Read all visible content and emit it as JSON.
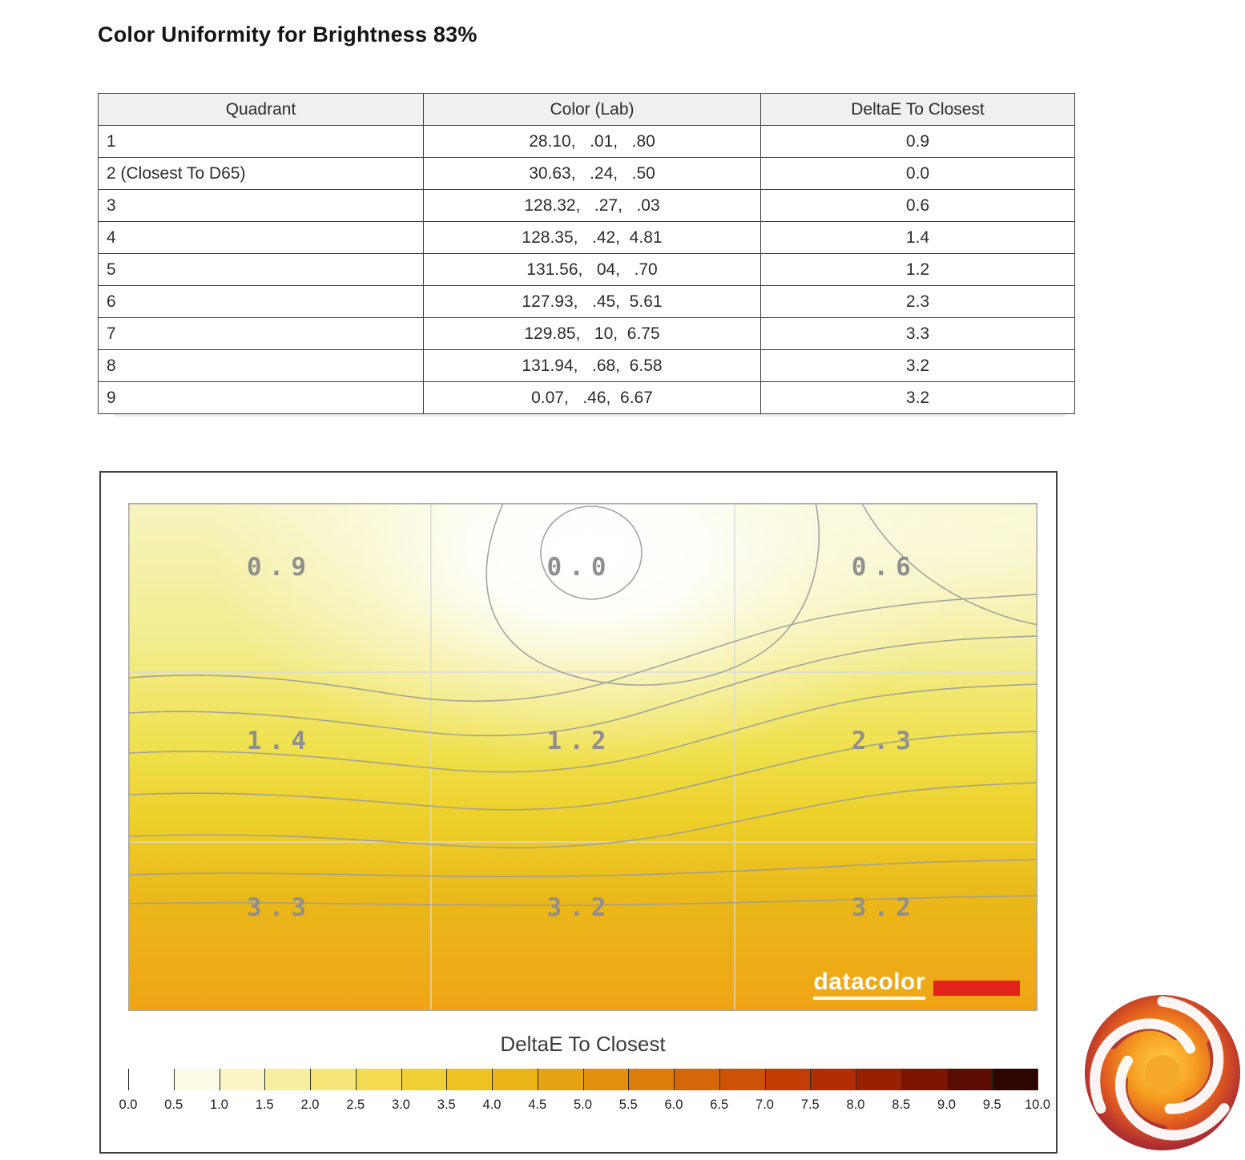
{
  "page": {
    "title": "Color Uniformity for Brightness 83%"
  },
  "table": {
    "headers": [
      "Quadrant",
      "Color (Lab)",
      "DeltaE To Closest"
    ],
    "rows": [
      [
        "1",
        "28.10,   .01,   .80",
        "0.9"
      ],
      [
        "2 (Closest To D65)",
        "30.63,   .24,   .50",
        "0.0"
      ],
      [
        "3",
        "128.32,   .27,   .03",
        "0.6"
      ],
      [
        "4",
        "128.35,   .42,  4.81",
        "1.4"
      ],
      [
        "5",
        "131.56,   04,   .70",
        "1.2"
      ],
      [
        "6",
        "127.93,   .45,  5.61",
        "2.3"
      ],
      [
        "7",
        "129.85,   10,  6.75",
        "3.3"
      ],
      [
        "8",
        "131.94,   .68,  6.58",
        "3.2"
      ],
      [
        "9",
        "0.07,   .46,  6.67",
        "3.2"
      ]
    ]
  },
  "chart_data": {
    "type": "heatmap",
    "title": "Color Uniformity for Brightness 83%",
    "description": "DeltaE to closest quadrant contour map, 3x3 grid",
    "grid_rows": 3,
    "grid_cols": 3,
    "grid": [
      [
        0.9,
        0.0,
        0.6
      ],
      [
        1.4,
        1.2,
        2.3
      ],
      [
        3.3,
        3.2,
        3.2
      ]
    ],
    "cell_labels": [
      "0.9",
      "0.0",
      "0.6",
      "1.4",
      "1.2",
      "2.3",
      "3.3",
      "3.2",
      "3.2"
    ],
    "closest_quadrant": "2 (Closest To D65)",
    "colorbar": {
      "label": "DeltaE To Closest",
      "min": 0.0,
      "max": 10.0,
      "step": 0.5,
      "tick_labels": [
        "0.0",
        "0.5",
        "1.0",
        "1.5",
        "2.0",
        "2.5",
        "3.0",
        "3.5",
        "4.0",
        "4.5",
        "5.0",
        "5.5",
        "6.0",
        "6.5",
        "7.0",
        "7.5",
        "8.0",
        "8.5",
        "9.0",
        "9.5",
        "10.0"
      ],
      "segment_colors": [
        "#ffffff",
        "#fdfae6",
        "#fbf5c6",
        "#f9eea0",
        "#f6e678",
        "#f3dc52",
        "#f0d034",
        "#edc222",
        "#eab317",
        "#e6a211",
        "#e2900d",
        "#dd7c0a",
        "#d66708",
        "#ce5206",
        "#c33e05",
        "#b22d04",
        "#992103",
        "#7c1602",
        "#5c0d01",
        "#2e0500"
      ]
    },
    "watermark": "datacolor",
    "colors": {
      "watermark_red": "#e2231a",
      "cell_label_gray": "#8f8f8f",
      "map_low": "#ffffff",
      "map_high": "#f0a415"
    }
  }
}
